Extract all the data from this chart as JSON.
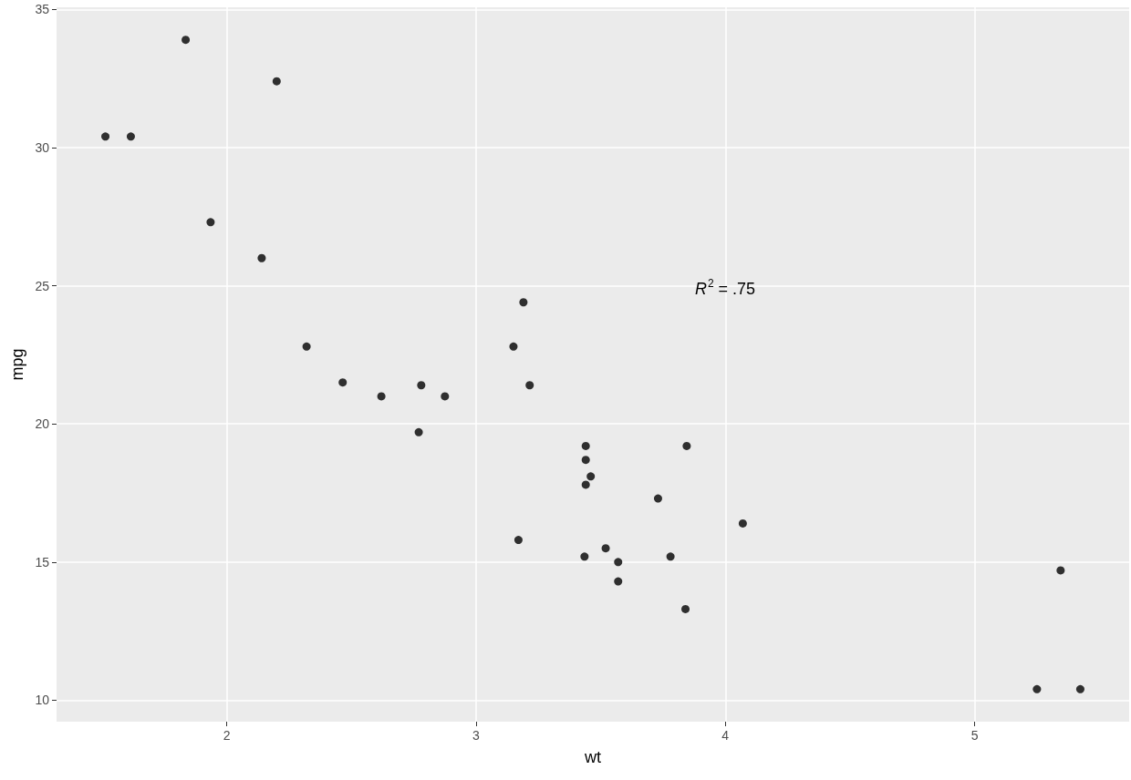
{
  "chart_data": {
    "type": "scatter",
    "xlabel": "wt",
    "ylabel": "mpg",
    "x": [
      2.62,
      2.875,
      2.32,
      3.215,
      3.44,
      3.46,
      3.57,
      3.19,
      3.15,
      3.44,
      3.44,
      4.07,
      3.73,
      3.78,
      5.25,
      5.424,
      5.345,
      2.2,
      1.615,
      1.835,
      2.465,
      3.52,
      3.435,
      3.84,
      3.845,
      1.935,
      2.14,
      1.513,
      3.17,
      2.77,
      3.57,
      2.78
    ],
    "values": [
      21.0,
      21.0,
      22.8,
      21.4,
      18.7,
      18.1,
      14.3,
      24.4,
      22.8,
      19.2,
      17.8,
      16.4,
      17.3,
      15.2,
      10.4,
      10.4,
      14.7,
      32.4,
      30.4,
      33.9,
      21.5,
      15.5,
      15.2,
      13.3,
      19.2,
      27.3,
      26.0,
      30.4,
      15.8,
      19.7,
      15.0,
      21.4
    ],
    "color": "#000000",
    "marker": "circle",
    "xlim": [
      1.317,
      5.62
    ],
    "xticks": [
      2,
      3,
      4,
      5
    ],
    "ylim": [
      9.225,
      35.075
    ],
    "yticks": [
      10,
      15,
      20,
      25,
      30,
      35
    ],
    "grid": true,
    "annotations": [
      "R$^{2}$ = .75"
    ]
  }
}
